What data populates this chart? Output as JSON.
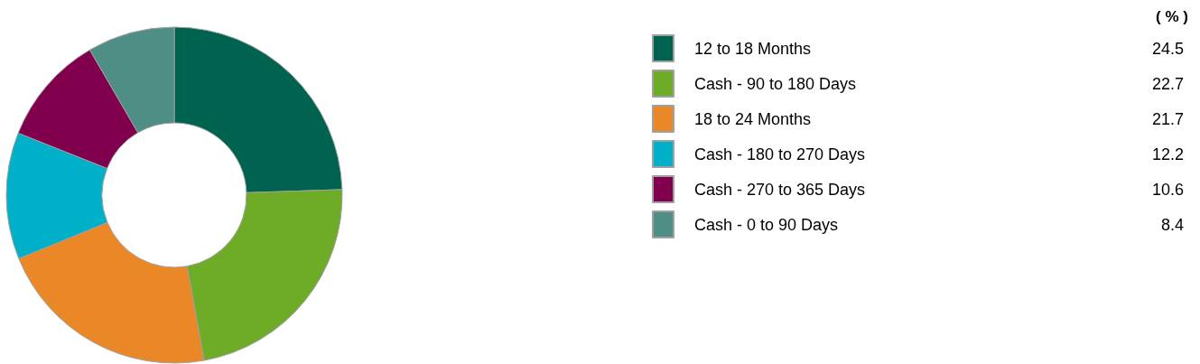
{
  "chart_data": {
    "type": "donut",
    "categories": [
      "12 to 18 Months",
      "Cash - 90 to 180 Days",
      "18 to 24 Months",
      "Cash - 180 to 270 Days",
      "Cash - 270 to 365 Days",
      "Cash - 0 to 90 Days"
    ],
    "values": [
      24.5,
      22.7,
      21.7,
      12.2,
      10.6,
      8.4
    ],
    "colors": [
      "#00634f",
      "#6eab26",
      "#ea8727",
      "#00b0c8",
      "#80004e",
      "#4f8e85"
    ],
    "data_labels": true,
    "legend": "right",
    "annotations": [
      "( % )"
    ]
  }
}
